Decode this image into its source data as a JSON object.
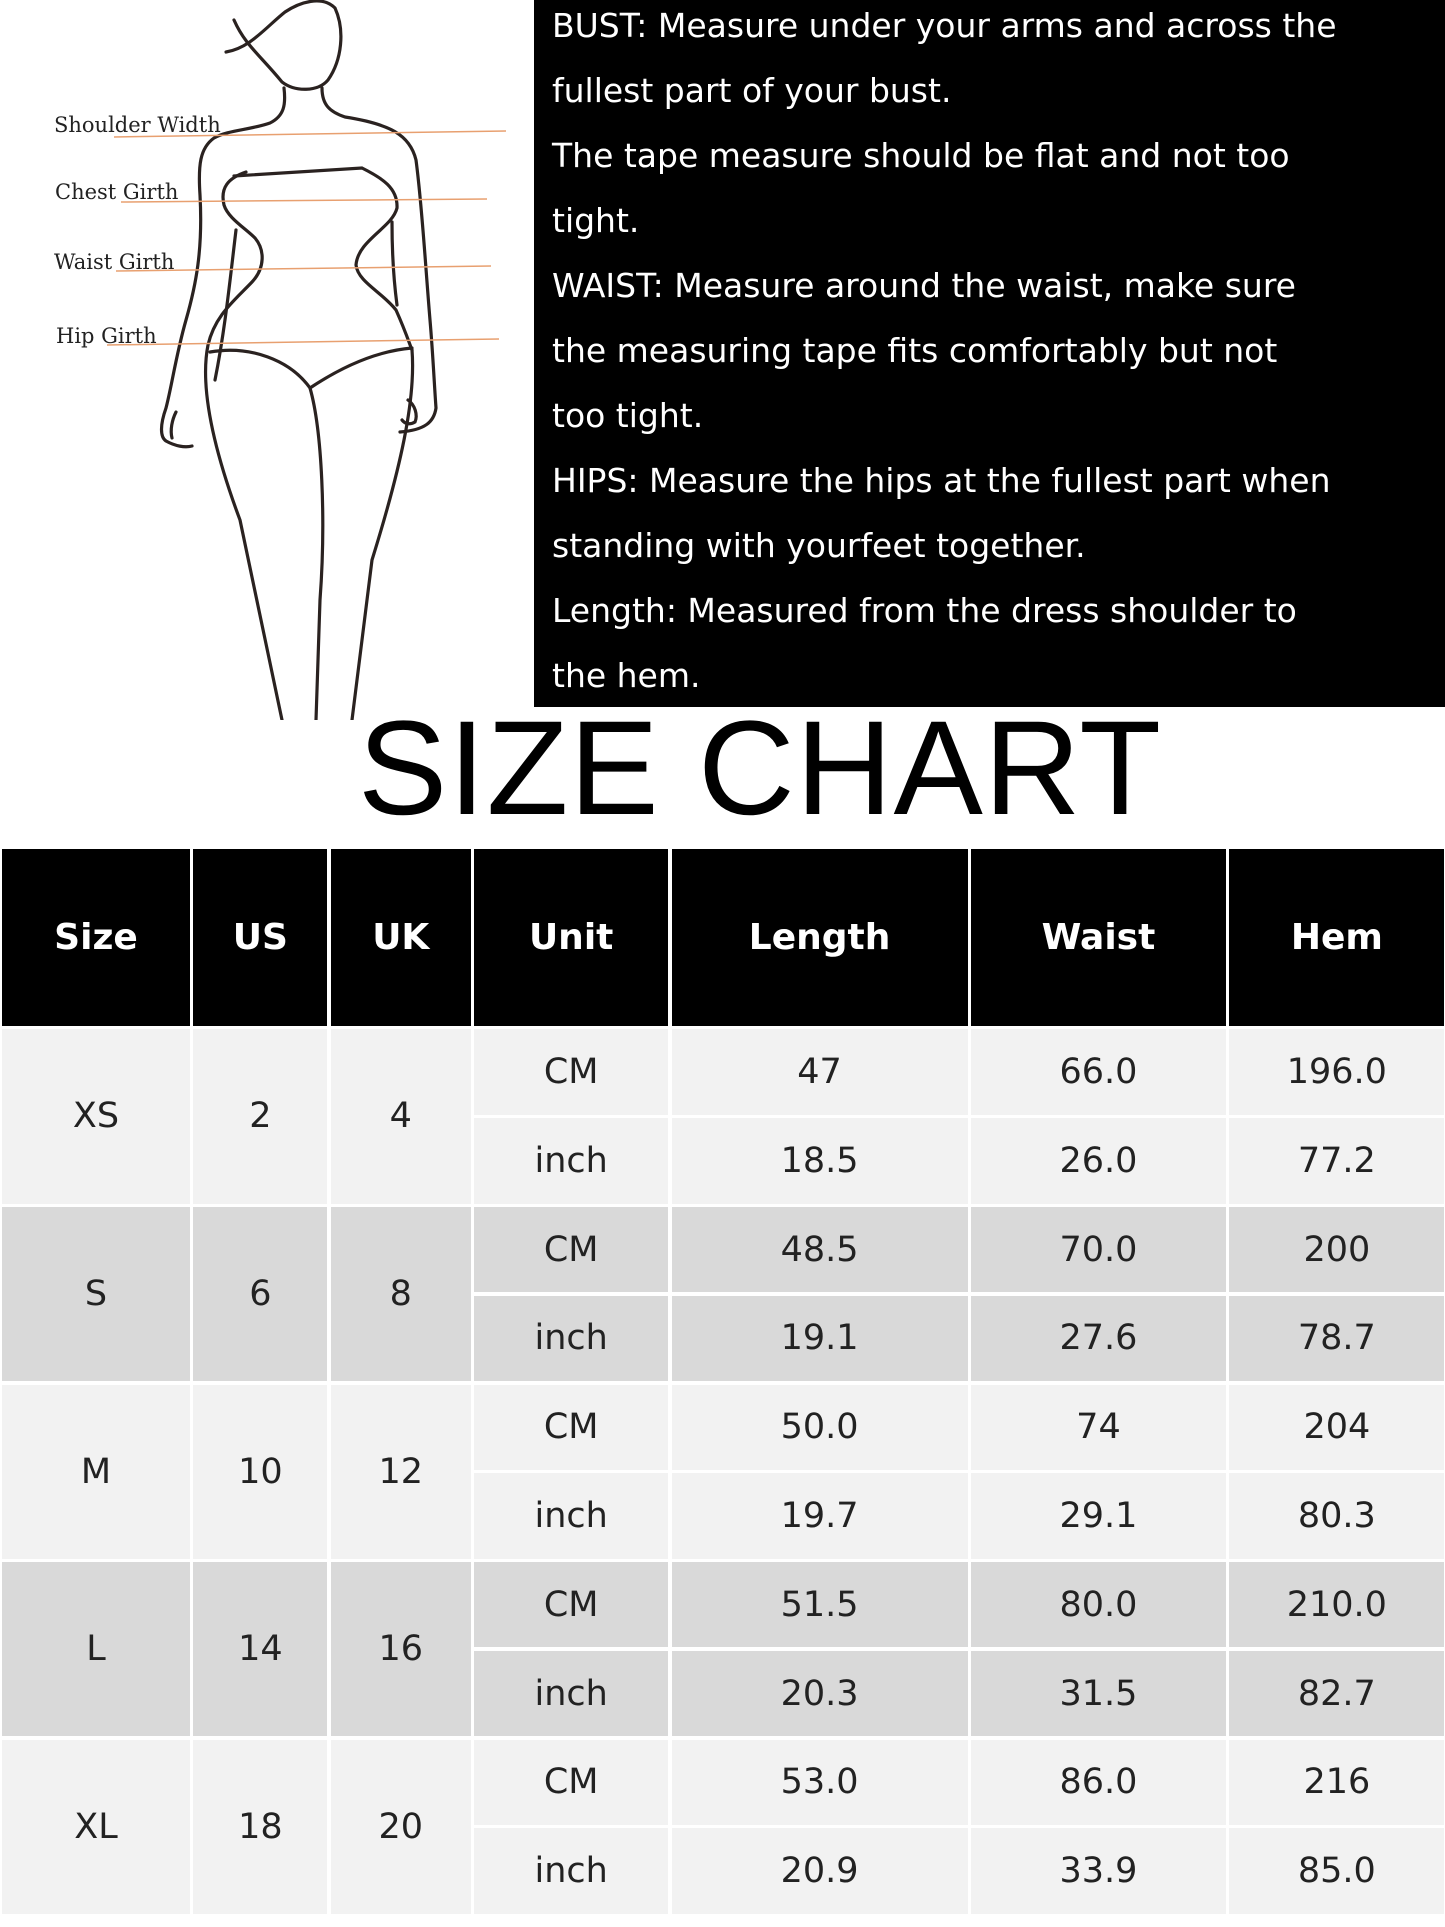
{
  "diagram": {
    "labels": [
      "Shoulder Width",
      "Chest Girth",
      "Waist Girth",
      "Hip Girth"
    ],
    "line_color": "#e8a070"
  },
  "guide": {
    "lines": [
      "BUST: Measure under your arms and across the",
      "fullest part of your bust.",
      "The tape measure should be flat and not too",
      "tight.",
      "WAIST: Measure around the waist, make sure",
      "the measuring tape fits comfortably but not",
      "too tight.",
      "HIPS: Measure the hips at the fullest part when",
      "standing with yourfeet together.",
      "Length: Measured from the dress shoulder to",
      "the hem."
    ]
  },
  "title": "SIZE CHART",
  "table": {
    "headers": [
      "Size",
      "US",
      "UK",
      "Unit",
      "Length",
      "Waist",
      "Hem"
    ],
    "rows": [
      {
        "size": "XS",
        "us": "2",
        "uk": "4",
        "cm": [
          "CM",
          "47",
          "66.0",
          "196.0"
        ],
        "inch": [
          "inch",
          "18.5",
          "26.0",
          "77.2"
        ]
      },
      {
        "size": "S",
        "us": "6",
        "uk": "8",
        "cm": [
          "CM",
          "48.5",
          "70.0",
          "200"
        ],
        "inch": [
          "inch",
          "19.1",
          "27.6",
          "78.7"
        ]
      },
      {
        "size": "M",
        "us": "10",
        "uk": "12",
        "cm": [
          "CM",
          "50.0",
          "74",
          "204"
        ],
        "inch": [
          "inch",
          "19.7",
          "29.1",
          "80.3"
        ]
      },
      {
        "size": "L",
        "us": "14",
        "uk": "16",
        "cm": [
          "CM",
          "51.5",
          "80.0",
          "210.0"
        ],
        "inch": [
          "inch",
          "20.3",
          "31.5",
          "82.7"
        ]
      },
      {
        "size": "XL",
        "us": "18",
        "uk": "20",
        "cm": [
          "CM",
          "53.0",
          "86.0",
          "216"
        ],
        "inch": [
          "inch",
          "20.9",
          "33.9",
          "85.0"
        ]
      }
    ],
    "colors": {
      "header": "#000000",
      "row_light": "#f2f2f2",
      "row_dark": "#d9d9d9"
    }
  }
}
